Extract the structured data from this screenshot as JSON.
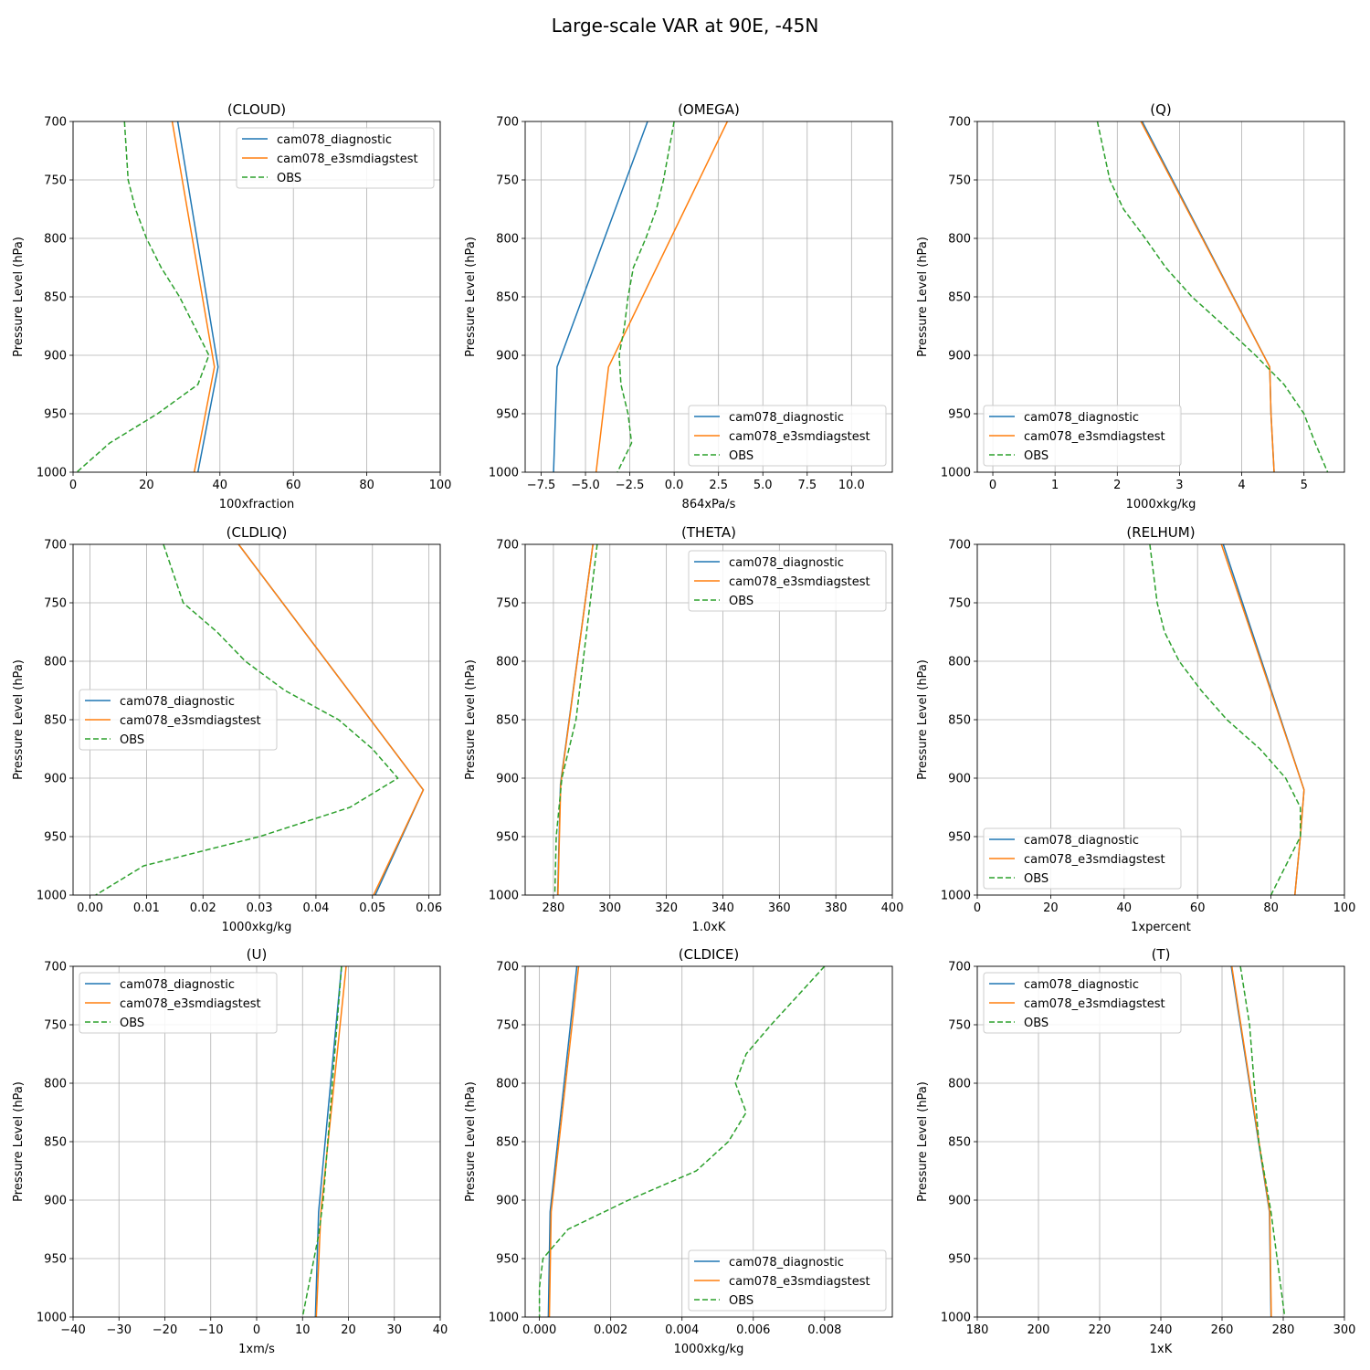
{
  "figure": {
    "title": "Large-scale VAR at 90E, -45N"
  },
  "styles": {
    "cam078_diagnostic": {
      "color": "#1f77b4",
      "dash": ""
    },
    "cam078_e3smdiagstest": {
      "color": "#ff7f0e",
      "dash": ""
    },
    "OBS": {
      "color": "#2ca02c",
      "dash": "6,3"
    }
  },
  "chart_data": [
    {
      "type": "line",
      "title": "(CLOUD)",
      "xlabel": "100xfraction",
      "ylabel": "Pressure Level (hPa)",
      "xlim": [
        0,
        100
      ],
      "xticks": [
        0,
        20,
        40,
        60,
        80,
        100
      ],
      "xtick_labels": [
        "0",
        "20",
        "40",
        "60",
        "80",
        "100"
      ],
      "ylim": [
        1000,
        700
      ],
      "yticks": [
        700,
        750,
        800,
        850,
        900,
        950,
        1000
      ],
      "ytick_labels": [
        "700",
        "750",
        "800",
        "850",
        "900",
        "950",
        "1000"
      ],
      "grid": true,
      "legend": "upper right",
      "series": [
        {
          "name": "cam078_diagnostic",
          "x": [
            28.5,
            39.5,
            34
          ],
          "y": [
            700,
            910,
            1000
          ]
        },
        {
          "name": "cam078_e3smdiagstest",
          "x": [
            27,
            38.5,
            33
          ],
          "y": [
            700,
            910,
            1000
          ]
        },
        {
          "name": "OBS",
          "x": [
            14,
            15,
            17,
            20,
            24,
            29,
            33,
            37,
            34,
            23,
            10,
            1
          ],
          "y": [
            700,
            750,
            775,
            800,
            825,
            850,
            875,
            900,
            925,
            950,
            975,
            1000
          ]
        }
      ]
    },
    {
      "type": "line",
      "title": "(OMEGA)",
      "xlabel": "864xPa/s",
      "ylabel": "Pressure Level (hPa)",
      "xlim": [
        -8.4,
        12.3
      ],
      "xticks": [
        -7.5,
        -5,
        -2.5,
        0,
        2.5,
        5,
        7.5,
        10
      ],
      "xtick_labels": [
        "−7.5",
        "−5.0",
        "−2.5",
        "0.0",
        "2.5",
        "5.0",
        "7.5",
        "10.0"
      ],
      "ylim": [
        1000,
        700
      ],
      "yticks": [
        700,
        750,
        800,
        850,
        900,
        950,
        1000
      ],
      "ytick_labels": [
        "700",
        "750",
        "800",
        "850",
        "900",
        "950",
        "1000"
      ],
      "grid": true,
      "legend": "lower right",
      "series": [
        {
          "name": "cam078_diagnostic",
          "x": [
            -1.5,
            -6.6,
            -6.8
          ],
          "y": [
            700,
            910,
            1000
          ]
        },
        {
          "name": "cam078_e3smdiagstest",
          "x": [
            3.0,
            -3.7,
            -4.4
          ],
          "y": [
            700,
            910,
            1000
          ]
        },
        {
          "name": "OBS",
          "x": [
            0.0,
            -0.6,
            -1.0,
            -1.6,
            -2.3,
            -2.6,
            -2.8,
            -3.1,
            -3.0,
            -2.6,
            -2.4,
            -3.2
          ],
          "y": [
            700,
            750,
            775,
            800,
            825,
            850,
            875,
            900,
            925,
            950,
            975,
            1000
          ]
        }
      ]
    },
    {
      "type": "line",
      "title": "(Q)",
      "xlabel": "1000xkg/kg",
      "ylabel": "Pressure Level (hPa)",
      "xlim": [
        -0.25,
        5.65
      ],
      "xticks": [
        0,
        1,
        2,
        3,
        4,
        5
      ],
      "xtick_labels": [
        "0",
        "1",
        "2",
        "3",
        "4",
        "5"
      ],
      "ylim": [
        1000,
        700
      ],
      "yticks": [
        700,
        750,
        800,
        850,
        900,
        950,
        1000
      ],
      "ytick_labels": [
        "700",
        "750",
        "800",
        "850",
        "900",
        "950",
        "1000"
      ],
      "grid": true,
      "legend": "lower left",
      "series": [
        {
          "name": "cam078_diagnostic",
          "x": [
            2.4,
            4.45,
            4.47,
            4.52
          ],
          "y": [
            700,
            910,
            950,
            1000
          ]
        },
        {
          "name": "cam078_e3smdiagstest",
          "x": [
            2.38,
            4.45,
            4.47,
            4.52
          ],
          "y": [
            700,
            910,
            950,
            1000
          ]
        },
        {
          "name": "OBS",
          "x": [
            1.68,
            1.88,
            2.1,
            2.45,
            2.78,
            3.2,
            3.72,
            4.22,
            4.68,
            5.0,
            5.18,
            5.38
          ],
          "y": [
            700,
            750,
            775,
            800,
            825,
            850,
            875,
            900,
            925,
            950,
            975,
            1000
          ]
        }
      ]
    },
    {
      "type": "line",
      "title": "(CLDLIQ)",
      "xlabel": "1000xkg/kg",
      "ylabel": "Pressure Level (hPa)",
      "xlim": [
        -0.003,
        0.062
      ],
      "xticks": [
        0,
        0.01,
        0.02,
        0.03,
        0.04,
        0.05,
        0.06
      ],
      "xtick_labels": [
        "0.00",
        "0.01",
        "0.02",
        "0.03",
        "0.04",
        "0.05",
        "0.06"
      ],
      "ylim": [
        1000,
        700
      ],
      "yticks": [
        700,
        750,
        800,
        850,
        900,
        950,
        1000
      ],
      "ytick_labels": [
        "700",
        "750",
        "800",
        "850",
        "900",
        "950",
        "1000"
      ],
      "grid": true,
      "legend": "center left",
      "series": [
        {
          "name": "cam078_diagnostic",
          "x": [
            0.0263,
            0.059,
            0.0505
          ],
          "y": [
            700,
            910,
            1000
          ]
        },
        {
          "name": "cam078_e3smdiagstest",
          "x": [
            0.0263,
            0.059,
            0.0502
          ],
          "y": [
            700,
            910,
            1000
          ]
        },
        {
          "name": "OBS",
          "x": [
            0.013,
            0.0165,
            0.0225,
            0.0275,
            0.0345,
            0.044,
            0.05,
            0.0545,
            0.046,
            0.03,
            0.0095,
            0.001
          ],
          "y": [
            700,
            750,
            775,
            800,
            825,
            850,
            875,
            900,
            925,
            950,
            975,
            1000
          ]
        }
      ]
    },
    {
      "type": "line",
      "title": "(THETA)",
      "xlabel": "1.0xK",
      "ylabel": "Pressure Level (hPa)",
      "xlim": [
        270,
        400
      ],
      "xticks": [
        280,
        300,
        320,
        340,
        360,
        380,
        400
      ],
      "xtick_labels": [
        "280",
        "300",
        "320",
        "340",
        "360",
        "380",
        "400"
      ],
      "ylim": [
        1000,
        700
      ],
      "yticks": [
        700,
        750,
        800,
        850,
        900,
        950,
        1000
      ],
      "ytick_labels": [
        "700",
        "750",
        "800",
        "850",
        "900",
        "950",
        "1000"
      ],
      "grid": true,
      "legend": "upper right",
      "series": [
        {
          "name": "cam078_diagnostic",
          "x": [
            294,
            282.5,
            281.5
          ],
          "y": [
            700,
            905,
            1000
          ]
        },
        {
          "name": "cam078_e3smdiagstest",
          "x": [
            294,
            282.6,
            281.6
          ],
          "y": [
            700,
            905,
            1000
          ]
        },
        {
          "name": "OBS",
          "x": [
            295.5,
            293,
            290.5,
            288,
            285.5,
            283,
            282,
            281,
            280.5
          ],
          "y": [
            700,
            750,
            800,
            850,
            875,
            900,
            925,
            950,
            1000
          ]
        }
      ]
    },
    {
      "type": "line",
      "title": "(RELHUM)",
      "xlabel": "1xpercent",
      "ylabel": "Pressure Level (hPa)",
      "xlim": [
        0,
        100
      ],
      "xticks": [
        0,
        20,
        40,
        60,
        80,
        100
      ],
      "xtick_labels": [
        "0",
        "20",
        "40",
        "60",
        "80",
        "100"
      ],
      "ylim": [
        1000,
        700
      ],
      "yticks": [
        700,
        750,
        800,
        850,
        900,
        950,
        1000
      ],
      "ytick_labels": [
        "700",
        "750",
        "800",
        "850",
        "900",
        "950",
        "1000"
      ],
      "grid": true,
      "legend": "lower left",
      "series": [
        {
          "name": "cam078_diagnostic",
          "x": [
            67,
            89,
            88,
            86.5
          ],
          "y": [
            700,
            910,
            950,
            1000
          ]
        },
        {
          "name": "cam078_e3smdiagstest",
          "x": [
            66.5,
            89,
            88,
            86.5
          ],
          "y": [
            700,
            910,
            950,
            1000
          ]
        },
        {
          "name": "OBS",
          "x": [
            47,
            49,
            51,
            55,
            61,
            68,
            77,
            84,
            88,
            88,
            84,
            80
          ],
          "y": [
            700,
            750,
            775,
            800,
            825,
            850,
            875,
            900,
            925,
            950,
            975,
            1000
          ]
        }
      ]
    },
    {
      "type": "line",
      "title": "(U)",
      "xlabel": "1xm/s",
      "ylabel": "Pressure Level (hPa)",
      "xlim": [
        -40,
        40
      ],
      "xticks": [
        -40,
        -30,
        -20,
        -10,
        0,
        10,
        20,
        30,
        40
      ],
      "xtick_labels": [
        "−40",
        "−30",
        "−20",
        "−10",
        "0",
        "10",
        "20",
        "30",
        "40"
      ],
      "ylim": [
        1000,
        700
      ],
      "yticks": [
        700,
        750,
        800,
        850,
        900,
        950,
        1000
      ],
      "ytick_labels": [
        "700",
        "750",
        "800",
        "850",
        "900",
        "950",
        "1000"
      ],
      "grid": true,
      "legend": "upper left",
      "series": [
        {
          "name": "cam078_diagnostic",
          "x": [
            18.5,
            13.5,
            12.8
          ],
          "y": [
            700,
            910,
            1000
          ]
        },
        {
          "name": "cam078_e3smdiagstest",
          "x": [
            19.5,
            14,
            13
          ],
          "y": [
            700,
            910,
            1000
          ]
        },
        {
          "name": "OBS",
          "x": [
            18.5,
            17.5,
            16.5,
            15.5,
            14.5,
            13.5,
            12,
            10
          ],
          "y": [
            700,
            750,
            800,
            850,
            900,
            930,
            960,
            1000
          ]
        }
      ]
    },
    {
      "type": "line",
      "title": "(CLDICE)",
      "xlabel": "1000xkg/kg",
      "ylabel": "Pressure Level (hPa)",
      "xlim": [
        -0.0004,
        0.0099
      ],
      "xticks": [
        0,
        0.002,
        0.004,
        0.006,
        0.008
      ],
      "xtick_labels": [
        "0.000",
        "0.002",
        "0.004",
        "0.006",
        "0.008"
      ],
      "ylim": [
        1000,
        700
      ],
      "yticks": [
        700,
        750,
        800,
        850,
        900,
        950,
        1000
      ],
      "ytick_labels": [
        "700",
        "750",
        "800",
        "850",
        "900",
        "950",
        "1000"
      ],
      "grid": true,
      "legend": "lower right",
      "series": [
        {
          "name": "cam078_diagnostic",
          "x": [
            0.00105,
            0.0003,
            0.00025
          ],
          "y": [
            700,
            910,
            1000
          ]
        },
        {
          "name": "cam078_e3smdiagstest",
          "x": [
            0.0011,
            0.00033,
            0.00028
          ],
          "y": [
            700,
            910,
            1000
          ]
        },
        {
          "name": "OBS",
          "x": [
            0.008,
            0.0065,
            0.0058,
            0.0055,
            0.0058,
            0.0053,
            0.0044,
            0.0025,
            0.0008,
            0.0001,
            0.0,
            0.0
          ],
          "y": [
            700,
            750,
            775,
            800,
            825,
            850,
            875,
            900,
            925,
            950,
            975,
            1000
          ]
        }
      ]
    },
    {
      "type": "line",
      "title": "(T)",
      "xlabel": "1xK",
      "ylabel": "Pressure Level (hPa)",
      "xlim": [
        180,
        300
      ],
      "xticks": [
        180,
        200,
        220,
        240,
        260,
        280,
        300
      ],
      "xtick_labels": [
        "180",
        "200",
        "220",
        "240",
        "260",
        "280",
        "300"
      ],
      "ylim": [
        1000,
        700
      ],
      "yticks": [
        700,
        750,
        800,
        850,
        900,
        950,
        1000
      ],
      "ytick_labels": [
        "700",
        "750",
        "800",
        "850",
        "900",
        "950",
        "1000"
      ],
      "grid": true,
      "legend": "upper left",
      "series": [
        {
          "name": "cam078_diagnostic",
          "x": [
            263,
            275.5,
            276
          ],
          "y": [
            700,
            910,
            1000
          ]
        },
        {
          "name": "cam078_e3smdiagstest",
          "x": [
            263.2,
            275.6,
            276.1
          ],
          "y": [
            700,
            910,
            1000
          ]
        },
        {
          "name": "OBS",
          "x": [
            266,
            269,
            272,
            276,
            278.5,
            280.5
          ],
          "y": [
            700,
            750,
            850,
            910,
            960,
            1000
          ]
        }
      ]
    }
  ]
}
